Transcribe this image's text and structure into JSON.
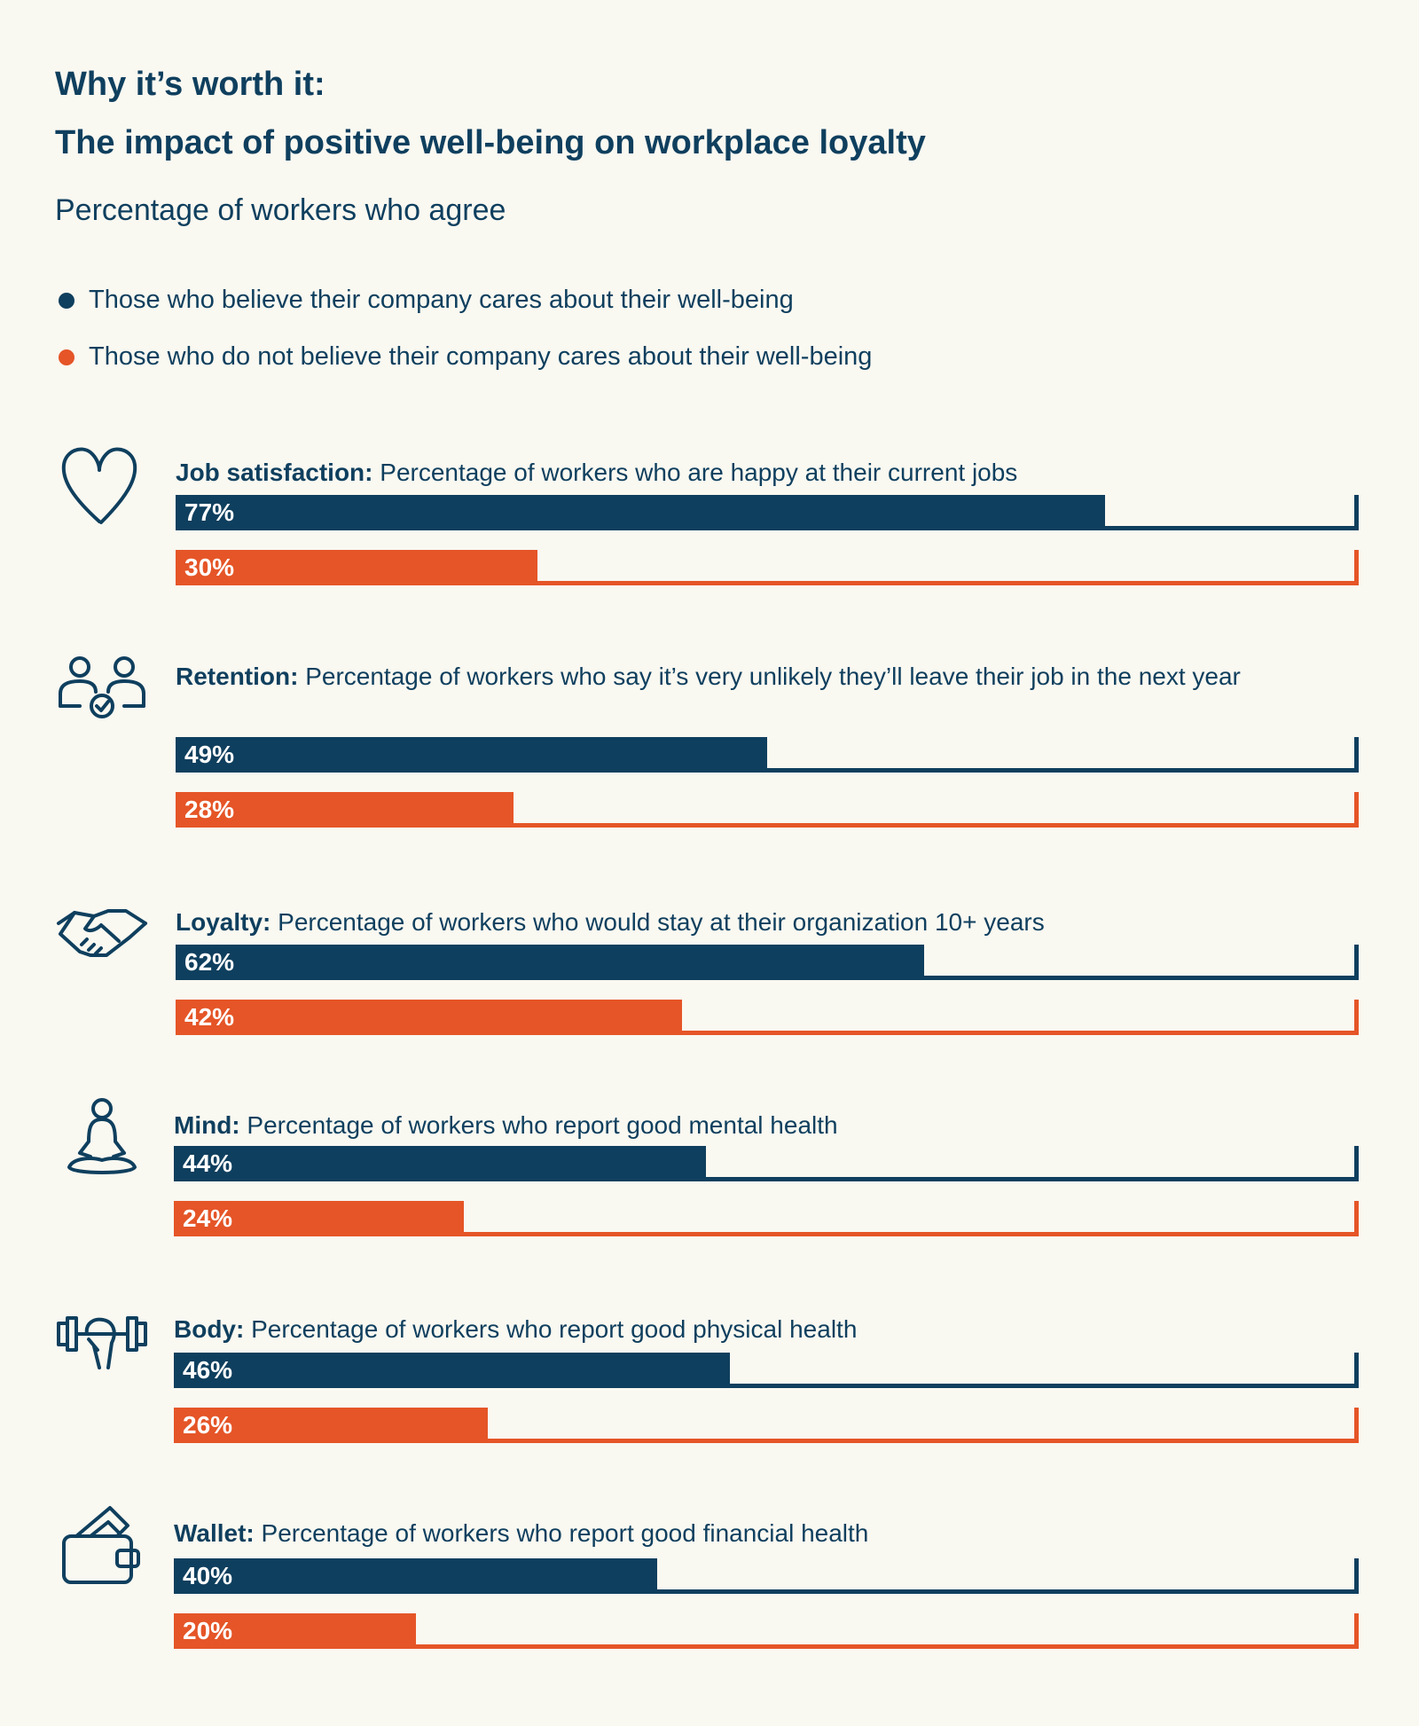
{
  "title_line1": "Why it’s worth it:",
  "title_line2": "The impact of positive well-being on workplace loyalty",
  "subtitle": "Percentage of workers who agree",
  "colors": {
    "cares": "#0f3f5e",
    "not_cares": "#e55527",
    "background": "#f9f8f1"
  },
  "legend": [
    {
      "label": "Those who believe their company cares about their well-being",
      "color": "#0f3f5e"
    },
    {
      "label": "Those who do not believe their company cares about their well-being",
      "color": "#e55527"
    }
  ],
  "chart_data": {
    "type": "bar",
    "orientation": "horizontal",
    "xlim": [
      0,
      100
    ],
    "unit": "%",
    "legend_placement": "top-left",
    "categories": [
      "Job satisfaction",
      "Retention",
      "Loyalty",
      "Mind",
      "Body",
      "Wallet"
    ],
    "series": [
      {
        "name": "Those who believe their company cares about their well-being",
        "values": [
          77,
          49,
          62,
          44,
          46,
          40
        ]
      },
      {
        "name": "Those who do not believe their company cares about their well-being",
        "values": [
          30,
          28,
          42,
          24,
          26,
          20
        ]
      }
    ]
  },
  "sections": [
    {
      "icon": "heart-icon",
      "name": "Job satisfaction:",
      "desc": " Percentage of workers who are happy at their current jobs",
      "v1": 77,
      "v2": 30,
      "l1": "77%",
      "l2": "30%"
    },
    {
      "icon": "people-check-icon",
      "name": "Retention:",
      "desc": " Percentage of workers who say it’s very unlikely they’ll leave their job in the next year",
      "v1": 49,
      "v2": 28,
      "l1": "49%",
      "l2": "28%"
    },
    {
      "icon": "handshake-icon",
      "name": "Loyalty:",
      "desc": " Percentage of workers who would stay at their organization 10+ years",
      "v1": 62,
      "v2": 42,
      "l1": "62%",
      "l2": "42%"
    },
    {
      "icon": "meditation-icon",
      "name": "Mind:",
      "desc": " Percentage of workers who report good mental health",
      "v1": 44,
      "v2": 24,
      "l1": "44%",
      "l2": "24%"
    },
    {
      "icon": "dumbbell-icon",
      "name": "Body:",
      "desc": " Percentage of workers who report good physical health",
      "v1": 46,
      "v2": 26,
      "l1": "46%",
      "l2": "26%"
    },
    {
      "icon": "wallet-icon",
      "name": "Wallet:",
      "desc": " Percentage of workers who report good financial health",
      "v1": 40,
      "v2": 20,
      "l1": "40%",
      "l2": "20%"
    }
  ]
}
